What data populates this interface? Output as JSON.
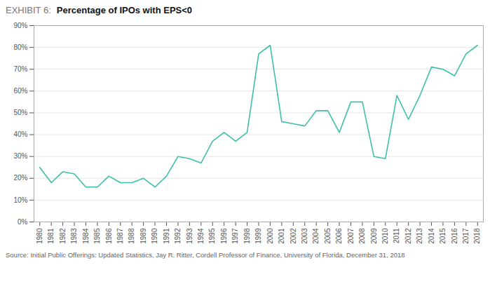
{
  "chart_data": {
    "type": "line",
    "subtitle": "EXHIBIT 6:",
    "title": "Percentage of IPOs with EPS<0",
    "caption": "Source: Initial Public Offerings: Updated Statistics, Jay R. Ritter, Cordell Professor of Finance, University of Florida, December 31, 2018",
    "x": [
      1980,
      1981,
      1982,
      1983,
      1984,
      1985,
      1986,
      1987,
      1988,
      1989,
      1990,
      1991,
      1992,
      1993,
      1994,
      1995,
      1996,
      1997,
      1998,
      1999,
      2000,
      2001,
      2002,
      2003,
      2004,
      2005,
      2006,
      2007,
      2008,
      2009,
      2010,
      2011,
      2012,
      2013,
      2014,
      2015,
      2016,
      2017,
      2018
    ],
    "values": [
      0.25,
      0.18,
      0.23,
      0.22,
      0.16,
      0.16,
      0.21,
      0.18,
      0.18,
      0.2,
      0.16,
      0.21,
      0.3,
      0.29,
      0.27,
      0.37,
      0.41,
      0.37,
      0.41,
      0.77,
      0.81,
      0.46,
      0.45,
      0.44,
      0.51,
      0.51,
      0.41,
      0.55,
      0.55,
      0.3,
      0.29,
      0.58,
      0.47,
      0.58,
      0.71,
      0.7,
      0.67,
      0.77,
      0.81
    ],
    "color": "#3dbfaa",
    "xlim": [
      1979.5,
      2018.5
    ],
    "xticks": [
      1980,
      1981,
      1982,
      1983,
      1984,
      1985,
      1986,
      1987,
      1988,
      1989,
      1990,
      1991,
      1992,
      1993,
      1994,
      1995,
      1996,
      1997,
      1998,
      1999,
      2000,
      2001,
      2002,
      2003,
      2004,
      2005,
      2006,
      2007,
      2008,
      2009,
      2010,
      2011,
      2012,
      2013,
      2014,
      2015,
      2016,
      2017,
      2018
    ],
    "ylim": [
      0,
      0.9
    ],
    "yticks": [
      {
        "value": 0.0,
        "label": "0%"
      },
      {
        "value": 0.1,
        "label": "10%"
      },
      {
        "value": 0.2,
        "label": "20%"
      },
      {
        "value": 0.3,
        "label": "30%"
      },
      {
        "value": 0.4,
        "label": "40%"
      },
      {
        "value": 0.5,
        "label": "50%"
      },
      {
        "value": 0.6,
        "label": "60%"
      },
      {
        "value": 0.7,
        "label": "70%"
      },
      {
        "value": 0.8,
        "label": "80%"
      },
      {
        "value": 0.9,
        "label": "90%"
      }
    ],
    "grid": true
  }
}
